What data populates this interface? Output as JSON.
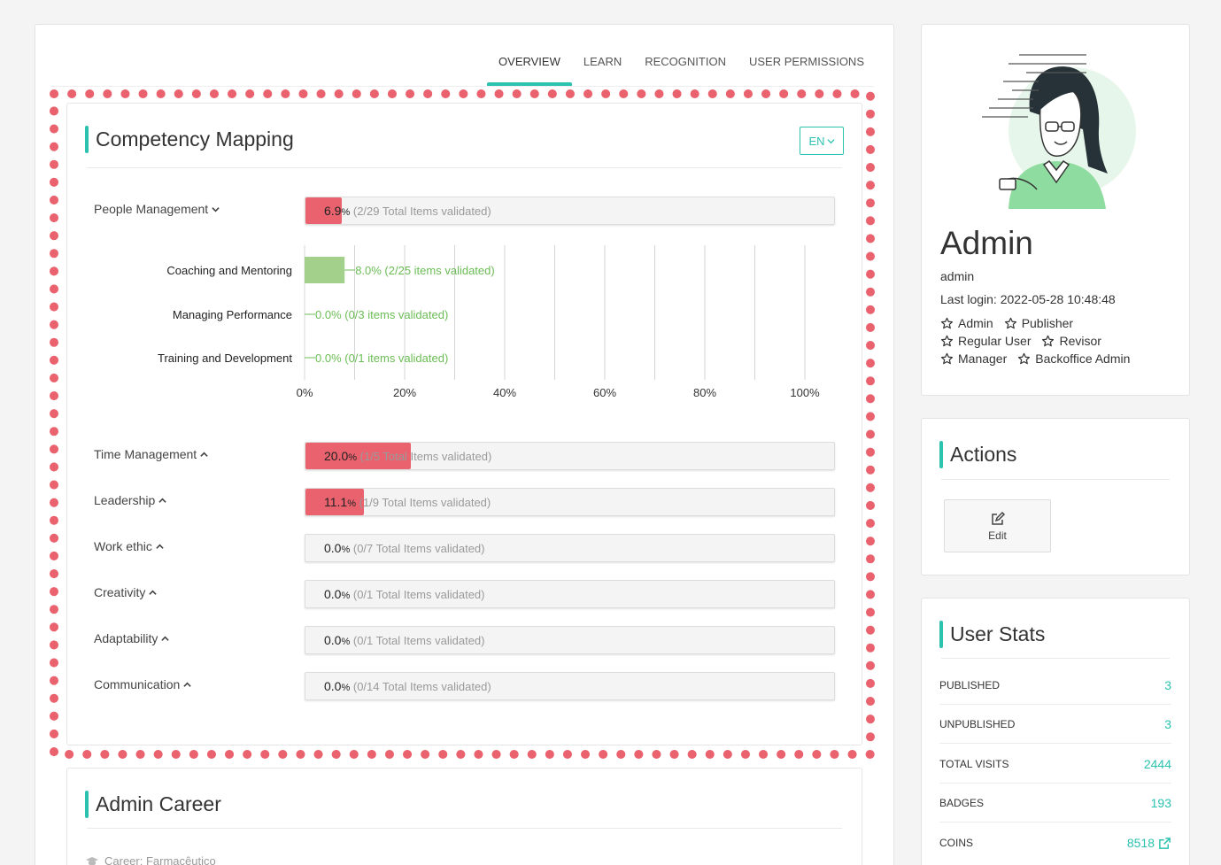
{
  "tabs": [
    {
      "label": "OVERVIEW"
    },
    {
      "label": "LEARN"
    },
    {
      "label": "RECOGNITION"
    },
    {
      "label": "USER PERMISSIONS"
    }
  ],
  "competency": {
    "title": "Competency Mapping",
    "lang": "EN",
    "rows": [
      {
        "label": "People Management",
        "pct": "6.9",
        "rest": "(2/29 Total Items validated)",
        "fill": 0.069,
        "expanded": true
      },
      {
        "label": "Time Management",
        "pct": "20.0",
        "rest": "(1/5 Total Items validated)",
        "fill": 0.2,
        "expanded": false
      },
      {
        "label": "Leadership",
        "pct": "11.1",
        "rest": "(1/9 Total Items validated)",
        "fill": 0.111,
        "expanded": false
      },
      {
        "label": "Work ethic",
        "pct": "0.0",
        "rest": "(0/7 Total Items validated)",
        "fill": 0,
        "expanded": false
      },
      {
        "label": "Creativity",
        "pct": "0.0",
        "rest": "(0/1 Total Items validated)",
        "fill": 0,
        "expanded": false
      },
      {
        "label": "Adaptability",
        "pct": "0.0",
        "rest": "(0/1 Total Items validated)",
        "fill": 0,
        "expanded": false
      },
      {
        "label": "Communication",
        "pct": "0.0",
        "rest": "(0/14 Total Items validated)",
        "fill": 0,
        "expanded": false
      }
    ],
    "pct_unit": "%"
  },
  "chart_data": {
    "type": "bar",
    "orientation": "horizontal",
    "categories": [
      "Coaching and Mentoring",
      "Managing Performance",
      "Training and Development"
    ],
    "values": [
      8.0,
      0.0,
      0.0
    ],
    "data_labels": [
      "8.0% (2/25 items validated)",
      "0.0% (0/3 items validated)",
      "0.0% (0/1 items validated)"
    ],
    "xlim": [
      0,
      100
    ],
    "xticks": [
      "0%",
      "20%",
      "40%",
      "60%",
      "80%",
      "100%"
    ],
    "grid": true,
    "bar_color": "#a3d18c",
    "label_color": "#6bbd55"
  },
  "profile": {
    "name": "Admin",
    "username": "admin",
    "last_login": "Last login: 2022-05-28 10:48:48",
    "roles": [
      "Admin",
      "Publisher",
      "Regular User",
      "Revisor",
      "Manager",
      "Backoffice Admin"
    ]
  },
  "actions": {
    "title": "Actions",
    "edit_label": "Edit"
  },
  "stats": {
    "title": "User Stats",
    "rows": [
      {
        "label": "PUBLISHED",
        "value": "3"
      },
      {
        "label": "UNPUBLISHED",
        "value": "3"
      },
      {
        "label": "TOTAL VISITS",
        "value": "2444"
      },
      {
        "label": "BADGES",
        "value": "193"
      },
      {
        "label": "COINS",
        "value": "8518"
      }
    ]
  },
  "career": {
    "title": "Admin Career",
    "subtitle": "Career: Farmacêutico"
  },
  "colors": {
    "accent": "#2cc2b0",
    "progress": "#e9626e",
    "dotted_frame": "#e9626e"
  }
}
